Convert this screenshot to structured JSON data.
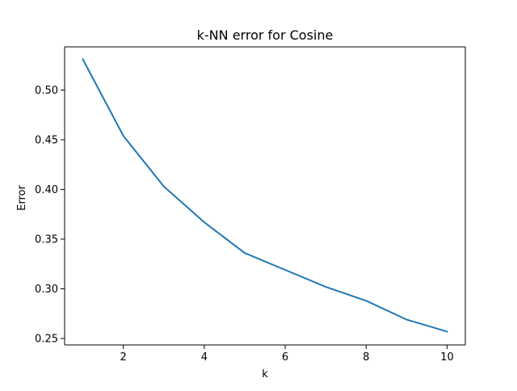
{
  "chart_data": {
    "type": "line",
    "title": "k-NN error for Cosine",
    "xlabel": "k",
    "ylabel": "Error",
    "xlim": [
      0.55,
      10.45
    ],
    "ylim": [
      0.2435,
      0.5435
    ],
    "xticks": [
      2,
      4,
      6,
      8,
      10
    ],
    "xtick_labels": [
      "2",
      "4",
      "6",
      "8",
      "10"
    ],
    "yticks": [
      0.25,
      0.3,
      0.35,
      0.4,
      0.45,
      0.5
    ],
    "ytick_labels": [
      "0.25",
      "0.30",
      "0.35",
      "0.40",
      "0.45",
      "0.50"
    ],
    "grid": false,
    "legend": "none",
    "series": [
      {
        "color": "#1f77b4",
        "x": [
          1,
          2,
          3,
          4,
          5,
          6,
          7,
          8,
          9,
          10
        ],
        "y": [
          0.531,
          0.454,
          0.403,
          0.367,
          0.336,
          0.319,
          0.302,
          0.288,
          0.269,
          0.257
        ]
      }
    ]
  }
}
